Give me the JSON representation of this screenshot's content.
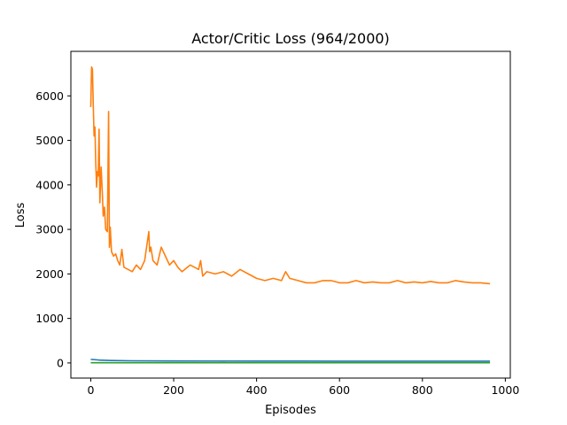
{
  "chart_data": {
    "type": "line",
    "title": "Actor/Critic Loss (964/2000)",
    "xlabel": "Episodes",
    "ylabel": "Loss",
    "xlim": [
      -48,
      1012
    ],
    "ylim": [
      -340,
      7000
    ],
    "xticks": [
      0,
      200,
      400,
      600,
      800,
      1000
    ],
    "yticks": [
      0,
      1000,
      2000,
      3000,
      4000,
      5000,
      6000
    ],
    "grid": false,
    "legend": "none",
    "series": [
      {
        "color": "#1f77b4",
        "x": [
          0,
          20,
          50,
          100,
          200,
          300,
          400,
          500,
          600,
          700,
          800,
          900,
          963
        ],
        "y": [
          80,
          65,
          55,
          48,
          45,
          43,
          42,
          41,
          40,
          40,
          40,
          40,
          40
        ]
      },
      {
        "color": "#ff7f0e",
        "x": [
          0,
          2,
          4,
          6,
          8,
          10,
          12,
          14,
          16,
          18,
          20,
          22,
          25,
          28,
          30,
          33,
          36,
          40,
          43,
          45,
          47,
          50,
          55,
          60,
          65,
          70,
          75,
          80,
          90,
          100,
          110,
          120,
          130,
          140,
          142,
          145,
          150,
          160,
          170,
          180,
          190,
          200,
          210,
          220,
          240,
          260,
          265,
          270,
          280,
          300,
          320,
          340,
          360,
          380,
          400,
          420,
          440,
          460,
          470,
          480,
          500,
          520,
          540,
          560,
          580,
          600,
          620,
          640,
          660,
          680,
          700,
          720,
          740,
          760,
          780,
          800,
          820,
          840,
          860,
          880,
          900,
          920,
          940,
          963
        ],
        "y": [
          5750,
          6650,
          6600,
          5800,
          5100,
          5300,
          4500,
          3950,
          4300,
          4200,
          5250,
          3600,
          4400,
          3800,
          3300,
          3500,
          3000,
          2950,
          5650,
          2600,
          3050,
          2500,
          2400,
          2450,
          2300,
          2200,
          2550,
          2150,
          2100,
          2050,
          2200,
          2100,
          2300,
          2950,
          2500,
          2600,
          2300,
          2200,
          2600,
          2400,
          2200,
          2300,
          2150,
          2050,
          2200,
          2100,
          2300,
          1950,
          2050,
          2000,
          2050,
          1950,
          2100,
          2000,
          1900,
          1850,
          1900,
          1850,
          2050,
          1900,
          1850,
          1800,
          1800,
          1850,
          1850,
          1800,
          1800,
          1850,
          1800,
          1820,
          1800,
          1800,
          1850,
          1800,
          1820,
          1800,
          1830,
          1800,
          1800,
          1850,
          1820,
          1800,
          1800,
          1780
        ]
      },
      {
        "color": "#2ca02c",
        "x": [
          0,
          100,
          200,
          300,
          400,
          500,
          600,
          700,
          800,
          900,
          963
        ],
        "y": [
          5,
          5,
          5,
          5,
          5,
          5,
          5,
          5,
          5,
          5,
          5
        ]
      }
    ]
  }
}
